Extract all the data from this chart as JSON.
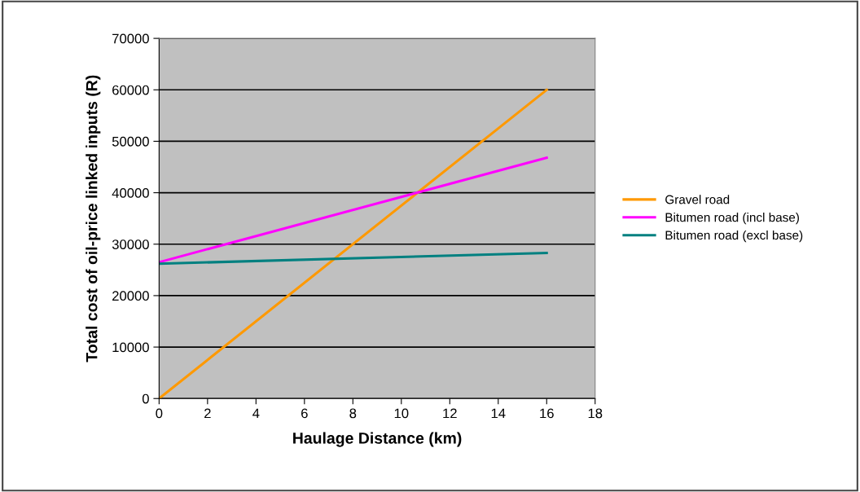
{
  "chart_data": {
    "type": "line",
    "xlabel": "Haulage Distance (km)",
    "ylabel": "Total cost of oil-price linked inputs (R)",
    "x": [
      0,
      16
    ],
    "series": [
      {
        "name": "Gravel road",
        "color": "#ff9900",
        "values": [
          0,
          60000
        ]
      },
      {
        "name": "Bitumen road (incl base)",
        "color": "#ff00ff",
        "values": [
          26500,
          46800
        ]
      },
      {
        "name": "Bitumen road (excl base)",
        "color": "#008080",
        "values": [
          26200,
          28300
        ]
      }
    ],
    "xlim": [
      0,
      18
    ],
    "xticks": [
      0,
      2,
      4,
      6,
      8,
      10,
      12,
      14,
      16,
      18
    ],
    "ylim": [
      0,
      70000
    ],
    "yticks": [
      0,
      10000,
      20000,
      30000,
      40000,
      50000,
      60000,
      70000
    ],
    "grid": "y",
    "legend": "right",
    "marker": "none",
    "line_style": "solid"
  }
}
